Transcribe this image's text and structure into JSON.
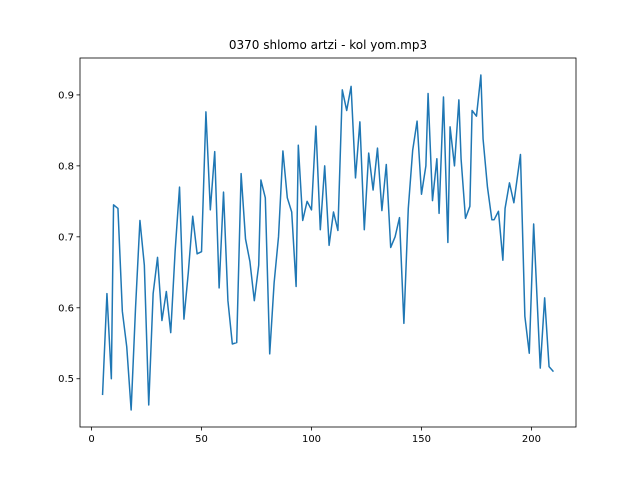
{
  "chart_data": {
    "type": "line",
    "title": "0370 shlomo artzi - kol yom.mp3",
    "x": [
      5,
      7,
      9,
      10,
      12,
      14,
      16,
      18,
      20,
      22,
      24,
      26,
      28,
      30,
      32,
      34,
      36,
      38,
      40,
      42,
      44,
      46,
      48,
      50,
      52,
      54,
      56,
      58,
      60,
      62,
      64,
      66,
      68,
      70,
      72,
      74,
      76,
      77,
      79,
      81,
      83,
      85,
      87,
      89,
      91,
      93,
      94,
      96,
      98,
      100,
      102,
      104,
      106,
      108,
      110,
      112,
      114,
      116,
      118,
      120,
      122,
      124,
      126,
      128,
      130,
      132,
      134,
      136,
      138,
      140,
      142,
      144,
      146,
      148,
      150,
      152,
      153,
      155,
      157,
      158,
      160,
      162,
      163,
      165,
      167,
      168,
      170,
      172,
      173,
      175,
      177,
      178,
      180,
      182,
      183,
      185,
      187,
      188,
      190,
      192,
      195,
      197,
      199,
      201,
      204,
      206,
      208,
      210
    ],
    "series": [
      {
        "color": "#1f77b4",
        "values": [
          0.477,
          0.62,
          0.5,
          0.745,
          0.74,
          0.595,
          0.545,
          0.456,
          0.6,
          0.723,
          0.66,
          0.463,
          0.62,
          0.671,
          0.582,
          0.623,
          0.565,
          0.68,
          0.77,
          0.584,
          0.65,
          0.729,
          0.676,
          0.679,
          0.876,
          0.738,
          0.82,
          0.628,
          0.763,
          0.61,
          0.549,
          0.551,
          0.789,
          0.697,
          0.665,
          0.61,
          0.66,
          0.78,
          0.755,
          0.535,
          0.635,
          0.7,
          0.821,
          0.755,
          0.735,
          0.63,
          0.829,
          0.723,
          0.75,
          0.738,
          0.856,
          0.71,
          0.8,
          0.688,
          0.735,
          0.709,
          0.907,
          0.878,
          0.912,
          0.783,
          0.862,
          0.71,
          0.818,
          0.766,
          0.825,
          0.737,
          0.802,
          0.685,
          0.7,
          0.727,
          0.578,
          0.74,
          0.822,
          0.863,
          0.76,
          0.8,
          0.902,
          0.751,
          0.81,
          0.733,
          0.897,
          0.692,
          0.855,
          0.8,
          0.893,
          0.81,
          0.726,
          0.743,
          0.878,
          0.87,
          0.928,
          0.838,
          0.77,
          0.724,
          0.724,
          0.736,
          0.667,
          0.74,
          0.776,
          0.748,
          0.816,
          0.588,
          0.536,
          0.718,
          0.515,
          0.614,
          0.517,
          0.51
        ]
      }
    ],
    "xlim": [
      -5.25,
      220.25
    ],
    "xticks": [
      0,
      50,
      100,
      150,
      200
    ],
    "ylim": [
      0.432,
      0.952
    ],
    "yticks": [
      0.5,
      0.6,
      0.7,
      0.8,
      0.9
    ]
  }
}
